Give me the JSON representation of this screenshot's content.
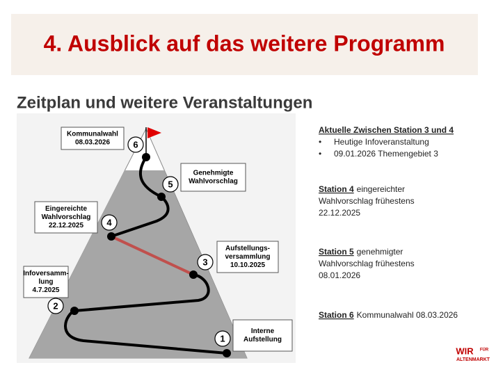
{
  "header": {
    "title": "4. Ausblick auf das weitere Programm"
  },
  "subtitle": "Zeitplan und weitere Veranstaltungen",
  "stations": [
    {
      "number": 1,
      "label": [
        "Interne",
        "Aufstellung"
      ]
    },
    {
      "number": 2,
      "label": [
        "Infoversamm-",
        "lung",
        "4.7.2025"
      ]
    },
    {
      "number": 3,
      "label": [
        "Aufstellungs-",
        "versammlung",
        "10.10.2025"
      ]
    },
    {
      "number": 4,
      "label": [
        "Eingereichte",
        "Wahlvorschlag",
        "22.12.2025"
      ]
    },
    {
      "number": 5,
      "label": [
        "Genehmigte",
        "Wahlvorschlag"
      ]
    },
    {
      "number": 6,
      "label": [
        "Kommunalwahl",
        "08.03.2026"
      ]
    }
  ],
  "info": {
    "heading": "Aktuelle Zwischen Station 3 und 4",
    "bullets": [
      "Heutige Infoveranstaltung",
      "09.01.2026 Themengebiet 3"
    ]
  },
  "notes": [
    {
      "station": "Station 4",
      "text": [
        "eingereichter",
        "Wahlvorschlag frühestens",
        "22.12.2025"
      ]
    },
    {
      "station": "Station 5",
      "text": [
        "genehmigter",
        "Wahlvorschlag frühestens",
        "08.01.2026"
      ]
    },
    {
      "station": "Station 6",
      "text": [
        "Kommunalwahl 08.03.2026"
      ]
    }
  ],
  "logo": {
    "line1": "WIR",
    "line2": "FÜR",
    "line3": "ALTENMARKT"
  }
}
